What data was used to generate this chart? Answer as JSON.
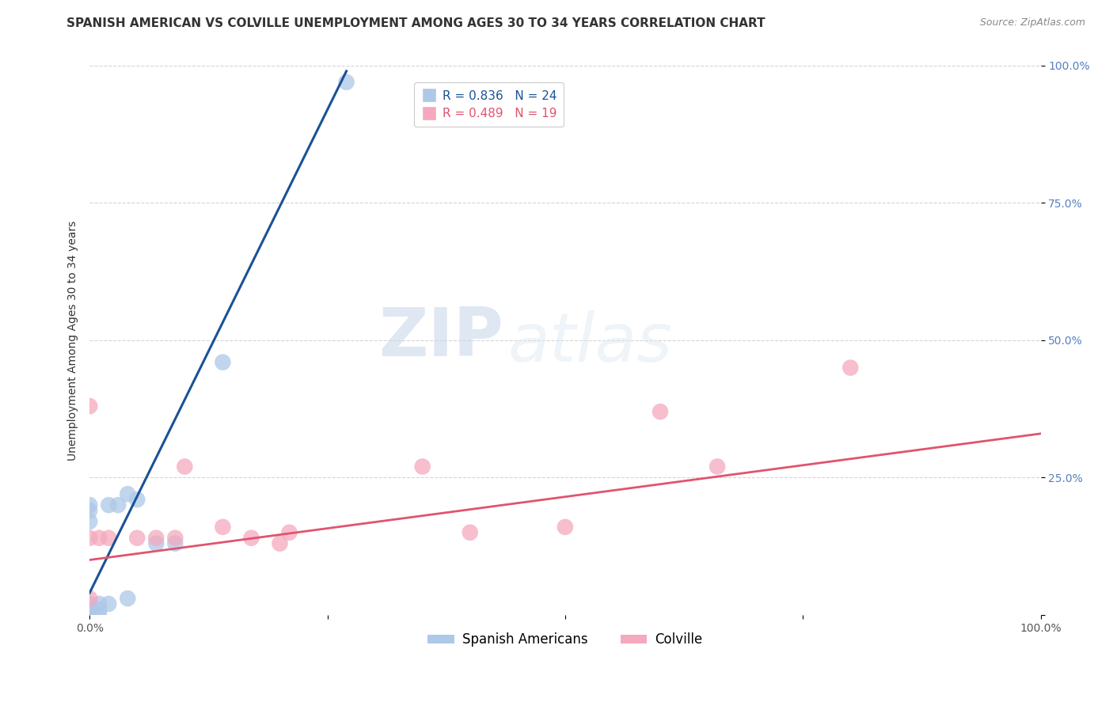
{
  "title": "SPANISH AMERICAN VS COLVILLE UNEMPLOYMENT AMONG AGES 30 TO 34 YEARS CORRELATION CHART",
  "source": "Source: ZipAtlas.com",
  "ylabel": "Unemployment Among Ages 30 to 34 years",
  "xlim": [
    0,
    1.0
  ],
  "ylim": [
    0,
    1.0
  ],
  "blue_R": 0.836,
  "blue_N": 24,
  "pink_R": 0.489,
  "pink_N": 19,
  "blue_color": "#adc8e8",
  "blue_line_color": "#1a5296",
  "pink_color": "#f5a8be",
  "pink_line_color": "#e0546e",
  "watermark_zip": "ZIP",
  "watermark_atlas": "atlas",
  "blue_scatter_x": [
    0.0,
    0.0,
    0.0,
    0.0,
    0.0,
    0.0,
    0.0,
    0.0,
    0.0,
    0.0,
    0.0,
    0.01,
    0.01,
    0.01,
    0.02,
    0.02,
    0.03,
    0.04,
    0.04,
    0.05,
    0.07,
    0.09,
    0.14,
    0.27
  ],
  "blue_scatter_y": [
    0.0,
    0.0,
    0.0,
    0.0,
    0.0,
    0.01,
    0.01,
    0.02,
    0.17,
    0.19,
    0.2,
    0.0,
    0.01,
    0.02,
    0.02,
    0.2,
    0.2,
    0.03,
    0.22,
    0.21,
    0.13,
    0.13,
    0.46,
    0.97
  ],
  "pink_scatter_x": [
    0.0,
    0.0,
    0.0,
    0.01,
    0.02,
    0.05,
    0.07,
    0.09,
    0.1,
    0.14,
    0.17,
    0.2,
    0.21,
    0.35,
    0.4,
    0.5,
    0.6,
    0.66,
    0.8
  ],
  "pink_scatter_y": [
    0.03,
    0.38,
    0.14,
    0.14,
    0.14,
    0.14,
    0.14,
    0.14,
    0.27,
    0.16,
    0.14,
    0.13,
    0.15,
    0.27,
    0.15,
    0.16,
    0.37,
    0.27,
    0.45
  ],
  "blue_trend_x0": 0.0,
  "blue_trend_y0": 0.04,
  "blue_trend_x1": 0.27,
  "blue_trend_y1": 0.99,
  "pink_trend_x0": 0.0,
  "pink_trend_y0": 0.1,
  "pink_trend_x1": 1.0,
  "pink_trend_y1": 0.33,
  "grid_color": "#d0d0d0",
  "background_color": "#ffffff",
  "title_fontsize": 11,
  "label_fontsize": 10,
  "tick_fontsize": 10,
  "legend_fontsize": 11
}
